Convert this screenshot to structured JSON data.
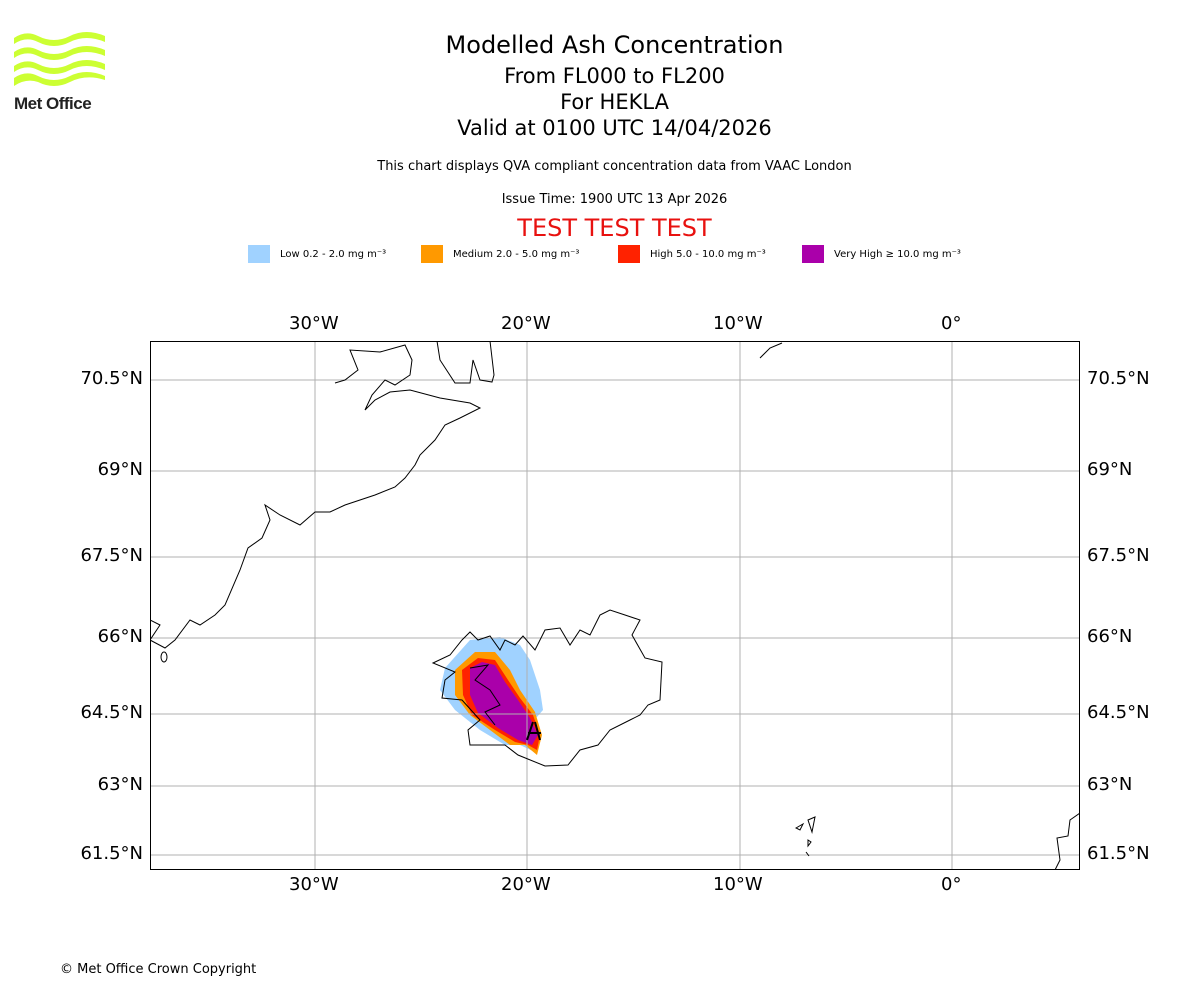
{
  "logo": {
    "text": "Met Office",
    "color": "#ccff33"
  },
  "header": {
    "title": "Modelled Ash Concentration",
    "levels": "From FL000 to FL200",
    "volcano": "For HEKLA",
    "valid": "Valid at 0100 UTC 14/04/2026",
    "description": "This chart displays QVA compliant concentration data from VAAC London",
    "issue_time": "Issue Time: 1900 UTC 13 Apr 2026",
    "test_banner": "TEST TEST TEST"
  },
  "legend": [
    {
      "label": "Low 0.2 - 2.0 mg m⁻³",
      "color": "#a0d2ff"
    },
    {
      "label": "Medium 2.0 - 5.0 mg m⁻³",
      "color": "#ff9900"
    },
    {
      "label": "High 5.0 - 10.0 mg m⁻³",
      "color": "#ff2200"
    },
    {
      "label": "Very High ≥ 10.0 mg m⁻³",
      "color": "#aa00aa"
    }
  ],
  "map": {
    "lon_labels": [
      "30°W",
      "20°W",
      "10°W",
      "0°"
    ],
    "lat_labels": [
      "70.5°N",
      "69°N",
      "67.5°N",
      "66°N",
      "64.5°N",
      "63°N",
      "61.5°N"
    ],
    "grid_color": "#b0b0b0"
  },
  "footer": {
    "copyright": "© Met Office Crown Copyright"
  }
}
